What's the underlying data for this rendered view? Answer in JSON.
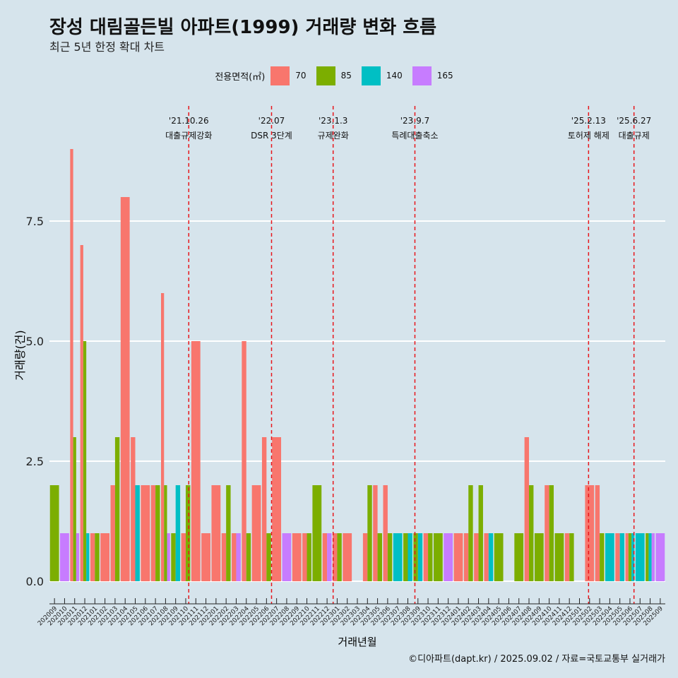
{
  "title": "장성 대림골든빌 아파트(1999) 거래량 변화 흐름",
  "subtitle": "최근 5년 한정 확대 차트",
  "caption": "©디아파트(dapt.kr) / 2025.09.02 / 자료=국토교통부 실거래가",
  "legend_title": "전용면적(㎡)",
  "colors": {
    "70": "#f8766d",
    "85": "#7cae00",
    "140": "#00bfc4",
    "165": "#c77cff",
    "event_line": "#e8161b",
    "grid": "#ffffff",
    "background": "#d6e4ec"
  },
  "chart_data": {
    "type": "bar",
    "stacking": "dodge",
    "xlabel": "거래년월",
    "ylabel": "거래량(건)",
    "ylim": [
      0,
      9
    ],
    "yticks": [
      0.0,
      2.5,
      5.0,
      7.5
    ],
    "ytick_labels": [
      "0.0",
      "2.5",
      "5.0",
      "7.5"
    ],
    "legend_position": "top",
    "grid": true,
    "categories": [
      "202009",
      "202010",
      "202011",
      "202012",
      "202101",
      "202102",
      "202103",
      "202104",
      "202105",
      "202106",
      "202107",
      "202108",
      "202109",
      "202110",
      "202111",
      "202112",
      "202201",
      "202202",
      "202203",
      "202204",
      "202205",
      "202206",
      "202207",
      "202208",
      "202209",
      "202210",
      "202211",
      "202212",
      "202301",
      "202302",
      "202303",
      "202304",
      "202305",
      "202306",
      "202307",
      "202308",
      "202309",
      "202310",
      "202311",
      "202312",
      "202401",
      "202402",
      "202403",
      "202404",
      "202405",
      "202406",
      "202407",
      "202408",
      "202409",
      "202410",
      "202411",
      "202412",
      "202501",
      "202502",
      "202503",
      "202504",
      "202505",
      "202506",
      "202507",
      "202508",
      "202509"
    ],
    "series": [
      {
        "name": "70",
        "values": [
          0,
          0,
          9,
          7,
          1,
          1,
          2,
          8,
          3,
          2,
          2,
          6,
          0,
          1,
          5,
          1,
          2,
          1,
          1,
          5,
          2,
          3,
          3,
          0,
          1,
          1,
          0,
          1,
          1,
          1,
          0,
          1,
          2,
          2,
          0,
          0,
          0,
          1,
          0,
          0,
          1,
          1,
          1,
          1,
          0,
          0,
          0,
          3,
          0,
          2,
          0,
          1,
          0,
          2,
          2,
          0,
          1,
          1,
          0,
          0,
          0
        ]
      },
      {
        "name": "85",
        "values": [
          2,
          0,
          3,
          5,
          1,
          0,
          3,
          0,
          0,
          0,
          2,
          2,
          1,
          2,
          0,
          0,
          0,
          2,
          0,
          1,
          0,
          1,
          0,
          0,
          0,
          1,
          2,
          0,
          1,
          0,
          0,
          2,
          1,
          1,
          0,
          1,
          1,
          1,
          1,
          0,
          0,
          2,
          2,
          0,
          1,
          0,
          1,
          2,
          1,
          2,
          1,
          1,
          0,
          0,
          1,
          0,
          0,
          1,
          0,
          1,
          0
        ]
      },
      {
        "name": "140",
        "values": [
          0,
          0,
          0,
          1,
          0,
          0,
          0,
          0,
          2,
          0,
          0,
          0,
          2,
          0,
          0,
          0,
          0,
          0,
          0,
          0,
          0,
          0,
          0,
          0,
          0,
          0,
          0,
          0,
          0,
          0,
          0,
          0,
          0,
          0,
          1,
          1,
          1,
          0,
          0,
          0,
          0,
          0,
          0,
          1,
          0,
          0,
          0,
          0,
          0,
          0,
          0,
          0,
          0,
          0,
          0,
          1,
          1,
          1,
          1,
          1,
          0
        ]
      },
      {
        "name": "165",
        "values": [
          0,
          1,
          1,
          0,
          0,
          0,
          0,
          0,
          0,
          0,
          0,
          1,
          0,
          0,
          0,
          0,
          0,
          0,
          1,
          0,
          0,
          0,
          0,
          1,
          0,
          0,
          0,
          1,
          0,
          0,
          0,
          0,
          0,
          0,
          0,
          0,
          0,
          0,
          0,
          1,
          0,
          0,
          0,
          0,
          0,
          0,
          0,
          0,
          0,
          0,
          0,
          0,
          0,
          0,
          0,
          0,
          0,
          0,
          0,
          1,
          1
        ]
      }
    ],
    "annotations": [
      {
        "date": "'21.10.26",
        "text": "대출규제강화",
        "after_category": "202110",
        "position": 0.8
      },
      {
        "date": "'22.07",
        "text": "DSR 3단계",
        "after_category": "202207",
        "position": 0.0
      },
      {
        "date": "'23.1.3",
        "text": "규제완화",
        "after_category": "202301",
        "position": 0.1
      },
      {
        "date": "'23.9.7",
        "text": "특례대출축소",
        "after_category": "202309",
        "position": 0.2
      },
      {
        "date": "'25.2.13",
        "text": "토허제 해제",
        "after_category": "202502",
        "position": 0.4
      },
      {
        "date": "'25.6.27",
        "text": "대출규제",
        "after_category": "202506",
        "position": 0.9
      }
    ]
  }
}
